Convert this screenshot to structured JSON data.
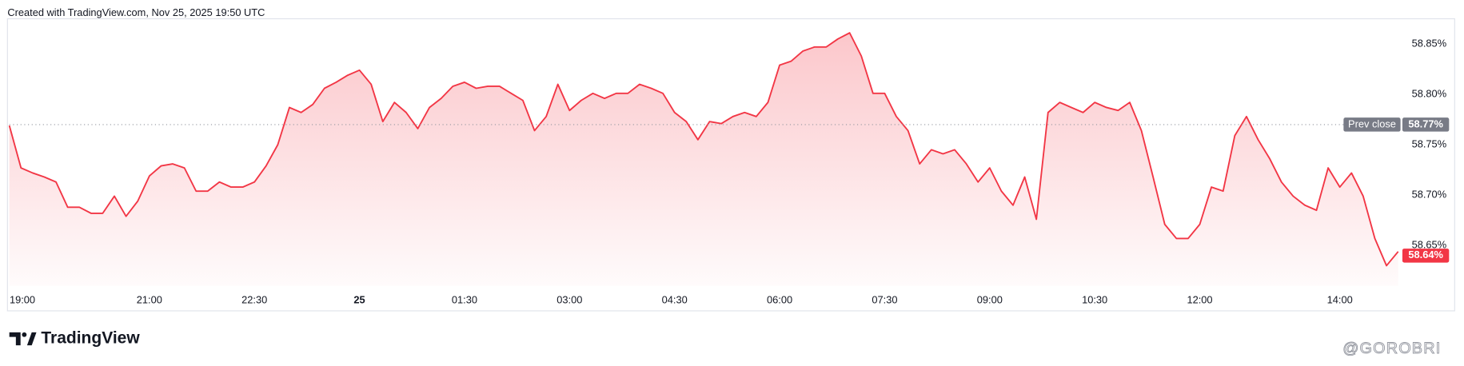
{
  "chart_data": {
    "type": "line",
    "title": "Created with TradingView.com, Nov 25, 2025 19:50 UTC",
    "logo": "TradingView",
    "watermark": "@GOROBRI",
    "x": [
      "19:00",
      "19:10",
      "19:20",
      "19:30",
      "19:40",
      "19:50",
      "20:00",
      "20:10",
      "20:20",
      "20:30",
      "20:40",
      "20:50",
      "21:00",
      "21:10",
      "21:20",
      "21:30",
      "21:40",
      "21:50",
      "22:00",
      "22:10",
      "22:20",
      "22:30",
      "22:40",
      "22:50",
      "23:00",
      "23:10",
      "23:20",
      "23:30",
      "23:40",
      "23:50",
      "00:00",
      "00:10",
      "00:20",
      "00:30",
      "00:40",
      "00:50",
      "01:00",
      "01:10",
      "01:20",
      "01:30",
      "01:40",
      "01:50",
      "02:00",
      "02:10",
      "02:20",
      "02:30",
      "02:40",
      "02:50",
      "03:00",
      "03:10",
      "03:20",
      "03:30",
      "03:40",
      "03:50",
      "04:00",
      "04:10",
      "04:20",
      "04:30",
      "04:40",
      "04:50",
      "05:00",
      "05:10",
      "05:20",
      "05:30",
      "05:40",
      "05:50",
      "06:00",
      "06:10",
      "06:20",
      "06:30",
      "06:40",
      "06:50",
      "07:00",
      "07:10",
      "07:20",
      "07:30",
      "07:40",
      "07:50",
      "08:00",
      "08:10",
      "08:20",
      "08:30",
      "08:40",
      "08:50",
      "09:00",
      "09:10",
      "09:20",
      "09:30",
      "09:40",
      "09:50",
      "10:00",
      "10:10",
      "10:20",
      "10:30",
      "10:40",
      "10:50",
      "11:00",
      "11:10",
      "11:20",
      "11:30",
      "11:40",
      "11:50",
      "12:00",
      "12:10",
      "12:20",
      "12:30",
      "12:40",
      "12:50",
      "13:00",
      "13:10",
      "13:20",
      "13:30",
      "13:40",
      "13:50",
      "14:00",
      "14:10",
      "14:20",
      "14:30",
      "14:40",
      "14:50"
    ],
    "series": [
      {
        "name": "Price",
        "color": "#f23645",
        "values": [
          58.769,
          58.727,
          58.722,
          58.718,
          58.713,
          58.688,
          58.688,
          58.682,
          58.682,
          58.699,
          58.679,
          58.694,
          58.719,
          58.729,
          58.731,
          58.727,
          58.704,
          58.704,
          58.713,
          58.708,
          58.708,
          58.713,
          58.729,
          58.75,
          58.787,
          58.782,
          58.79,
          58.806,
          58.812,
          58.819,
          58.824,
          58.81,
          58.773,
          58.792,
          58.782,
          58.766,
          58.787,
          58.796,
          58.808,
          58.812,
          58.806,
          58.808,
          58.808,
          58.801,
          58.794,
          58.764,
          58.778,
          58.81,
          58.784,
          58.794,
          58.801,
          58.796,
          58.801,
          58.801,
          58.81,
          58.806,
          58.801,
          58.782,
          58.773,
          58.755,
          58.773,
          58.771,
          58.778,
          58.782,
          58.778,
          58.792,
          58.829,
          58.833,
          58.843,
          58.847,
          58.847,
          58.855,
          58.861,
          58.838,
          58.801,
          58.801,
          58.778,
          58.764,
          58.731,
          58.745,
          58.741,
          58.745,
          58.731,
          58.713,
          58.727,
          58.704,
          58.69,
          58.718,
          58.676,
          58.782,
          58.792,
          58.787,
          58.782,
          58.792,
          58.787,
          58.784,
          58.792,
          58.764,
          58.718,
          58.671,
          58.657,
          58.657,
          58.671,
          58.708,
          58.704,
          58.759,
          58.778,
          58.755,
          58.736,
          58.713,
          58.699,
          58.69,
          58.685,
          58.727,
          58.708,
          58.722,
          58.699,
          58.657,
          58.63,
          58.644
        ]
      }
    ],
    "ylim": [
      58.61,
      58.88
    ],
    "yticks": [
      {
        "value": 58.65,
        "label": "58.65%"
      },
      {
        "value": 58.7,
        "label": "58.70%"
      },
      {
        "value": 58.75,
        "label": "58.75%"
      },
      {
        "value": 58.8,
        "label": "58.80%"
      },
      {
        "value": 58.85,
        "label": "58.85%"
      }
    ],
    "xticks": [
      "19:00",
      "21:00",
      "22:30",
      {
        "value": "00:00",
        "label": "25"
      },
      "01:30",
      "03:00",
      "04:30",
      "06:00",
      "07:30",
      "09:00",
      "10:30",
      "12:00",
      "14:00"
    ],
    "grid": false,
    "price_labels": [
      {
        "name": "Prev close",
        "value": 58.77,
        "label": "58.77%",
        "color": "#787b86"
      },
      {
        "value": 58.64,
        "label": "58.64%",
        "color": "#f23645"
      }
    ]
  }
}
